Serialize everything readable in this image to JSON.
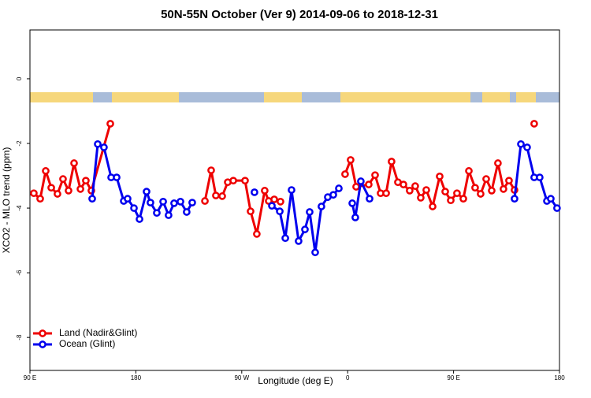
{
  "chart_data": {
    "type": "line",
    "title": "50N-55N October (Ver 9)   2014-09-06 to 2018-12-31",
    "x_label": "Longitude (deg E)",
    "y_label": "XCO2 - MLO trend (ppm)",
    "xlim": [
      90,
      540
    ],
    "xticks": [
      {
        "value": 90,
        "label": "90 E"
      },
      {
        "value": 180,
        "label": "180"
      },
      {
        "value": 270,
        "label": "90 W"
      },
      {
        "value": 360,
        "label": "0"
      },
      {
        "value": 450,
        "label": "90 E"
      },
      {
        "value": 540,
        "label": "180"
      }
    ],
    "ylim": [
      -9.02,
      1.51
    ],
    "yticks": [
      0,
      -2,
      -4,
      -6,
      -8
    ],
    "legend": "bottom-left",
    "series": [
      {
        "name": "Land (Nadir&Glint)",
        "color": "#ee0000",
        "x": [
          93.3,
          98.7,
          103.4,
          108.1,
          113.4,
          118.1,
          122.8,
          127.5,
          132.9,
          137.5,
          142.2,
          158.3,
          null,
          238.7,
          244.0,
          248.0,
          253.4,
          258.1,
          262.8,
          272.8,
          277.5,
          282.8,
          289.5,
          292.9,
          297.6,
          302.9,
          null,
          357.8,
          362.5,
          367.2,
          377.9,
          383.3,
          388.0,
          392.7,
          397.3,
          402.7,
          407.4,
          412.7,
          417.4,
          422.1,
          426.8,
          432.2,
          438.2,
          442.9,
          447.6,
          452.9,
          458.3,
          463.0,
          468.3,
          473.0,
          477.7,
          482.4,
          487.7,
          492.4,
          497.1,
          501.8,
          null,
          518.5
        ],
        "values": [
          -3.54,
          -3.71,
          -2.85,
          -3.37,
          -3.56,
          -3.1,
          -3.46,
          -2.61,
          -3.41,
          -3.15,
          -3.46,
          -1.39,
          null,
          -3.78,
          -2.83,
          -3.61,
          -3.63,
          -3.2,
          -3.15,
          -3.15,
          -4.1,
          -4.8,
          -3.46,
          -3.78,
          -3.73,
          -3.8,
          null,
          -2.95,
          -2.51,
          -3.34,
          -3.27,
          -2.98,
          -3.54,
          -3.54,
          -2.56,
          -3.2,
          -3.27,
          -3.46,
          -3.32,
          -3.68,
          -3.44,
          -3.95,
          -3.02,
          -3.49,
          -3.76,
          -3.54,
          -3.71,
          -2.85,
          -3.37,
          -3.56,
          -3.1,
          -3.46,
          -2.61,
          -3.41,
          -3.15,
          -3.44,
          null,
          -1.39
        ]
      },
      {
        "name": "Ocean (Glint)",
        "color": "#0000ee",
        "x": [
          142.9,
          147.6,
          152.9,
          159.0,
          163.7,
          169.7,
          173.0,
          178.4,
          183.1,
          189.1,
          192.4,
          197.8,
          203.2,
          207.8,
          212.5,
          217.9,
          223.2,
          227.9,
          null,
          280.8,
          null,
          295.6,
          302.3,
          307.0,
          312.3,
          318.3,
          323.7,
          327.7,
          332.4,
          337.7,
          343.1,
          347.8,
          352.5,
          null,
          363.9,
          366.5,
          371.2,
          378.6,
          null,
          501.8,
          507.2,
          512.5,
          518.5,
          523.2,
          529.3,
          532.6,
          537.9
        ],
        "values": [
          -3.71,
          -2.02,
          -2.12,
          -3.05,
          -3.05,
          -3.78,
          -3.71,
          -4.0,
          -4.34,
          -3.49,
          -3.83,
          -4.15,
          -3.8,
          -4.22,
          -3.85,
          -3.8,
          -4.12,
          -3.83,
          null,
          -3.51,
          null,
          -3.93,
          -4.1,
          -4.93,
          -3.44,
          -5.02,
          -4.66,
          -4.12,
          -5.37,
          -3.95,
          -3.66,
          -3.59,
          -3.39,
          null,
          -3.85,
          -4.29,
          -3.17,
          -3.71,
          null,
          -3.71,
          -2.02,
          -2.12,
          -3.05,
          -3.05,
          -3.78,
          -3.71,
          -4.0
        ]
      }
    ]
  }
}
